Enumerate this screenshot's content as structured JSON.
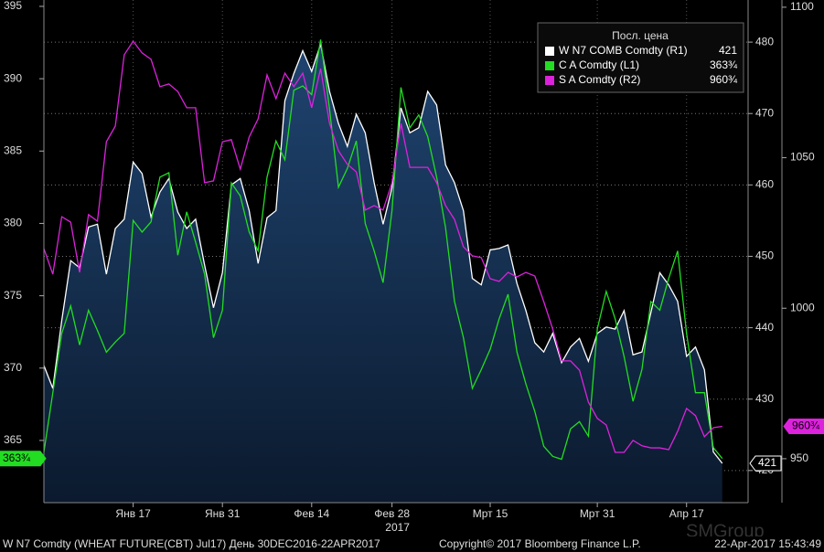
{
  "chart_data": {
    "type": "line",
    "legend_title": "Посл. цена",
    "categories": [
      null,
      null,
      null,
      null,
      null,
      null,
      null,
      null,
      null,
      null,
      "Янв 17",
      null,
      null,
      null,
      null,
      null,
      null,
      null,
      null,
      null,
      "Янв 31",
      null,
      null,
      null,
      null,
      null,
      null,
      null,
      null,
      null,
      "Фев 14",
      null,
      null,
      null,
      null,
      null,
      null,
      null,
      null,
      "Фев 28",
      null,
      null,
      null,
      null,
      null,
      null,
      null,
      null,
      null,
      null,
      "Мрт 15",
      null,
      null,
      null,
      null,
      null,
      null,
      null,
      null,
      null,
      null,
      null,
      "Мрт 31",
      null,
      null,
      null,
      null,
      null,
      null,
      null,
      null,
      null,
      "Апр 17",
      null,
      null,
      null,
      null
    ],
    "x_year_label": "2017",
    "series": [
      {
        "name": "W N7 COMB Comdty  (R1)",
        "color": "#ffffff",
        "axis": "y2",
        "area": true,
        "last_value_label": "421",
        "values": [
          434.7,
          431.5,
          441,
          449.4,
          448.4,
          454.1,
          454.5,
          447.5,
          453.9,
          455.2,
          463.2,
          461.6,
          455.5,
          459,
          460.9,
          456.2,
          453.9,
          455.2,
          448.8,
          442.8,
          447.7,
          460,
          460.9,
          456.4,
          449,
          455.4,
          456.4,
          471.8,
          475.6,
          478.8,
          475.9,
          479.7,
          473.1,
          468.6,
          465.4,
          469.9,
          467.3,
          460.3,
          454.5,
          459.6,
          470.8,
          467.3,
          468,
          473.1,
          471.2,
          462.8,
          460.3,
          456.4,
          446.9,
          446,
          450.9,
          451.1,
          451.6,
          446.2,
          442.4,
          437.9,
          436.6,
          439.2,
          435.1,
          437.3,
          438.5,
          435.3,
          439.2,
          440.1,
          439.8,
          442.4,
          436.2,
          436.6,
          442.1,
          447.7,
          446,
          443.7,
          436,
          437.3,
          434.1,
          422.6,
          421
        ]
      },
      {
        "name": "C A Comdty  (L1)",
        "color": "#22dd22",
        "axis": "y",
        "last_value_label": "363¾",
        "values": [
          364.2,
          368.3,
          372.4,
          374.3,
          371.6,
          374,
          372.6,
          371.1,
          371.8,
          372.4,
          380.2,
          379.4,
          380.1,
          383.2,
          383.5,
          377.8,
          380.8,
          378.7,
          376.5,
          372.1,
          374,
          382.8,
          381.9,
          379.4,
          378.1,
          383.2,
          385.7,
          384.4,
          389.2,
          389.5,
          388.9,
          392.7,
          387.9,
          382.5,
          383.8,
          385.7,
          380,
          378.1,
          375.9,
          380.9,
          389.4,
          386.6,
          387.5,
          386,
          383.2,
          379.7,
          374.6,
          372.1,
          368.6,
          369.9,
          371.3,
          373.4,
          375.1,
          371.1,
          368.9,
          367,
          364.6,
          363.9,
          363.7,
          365.8,
          366.3,
          365.3,
          372.7,
          375.3,
          373.4,
          370.8,
          367.7,
          369.9,
          374.6,
          374,
          376.2,
          378.1,
          372.4,
          368.3,
          368.3,
          364.5,
          363.75
        ]
      },
      {
        "name": "S A Comdty  (R2)",
        "color": "#dd22dd",
        "axis": "y3",
        "last_value_label": "960¾",
        "values": [
          1019.8,
          1011.3,
          1030.4,
          1028.6,
          1011.9,
          1031.1,
          1028.9,
          1055.3,
          1060.5,
          1084.2,
          1088.7,
          1084.8,
          1082.7,
          1073.6,
          1074.5,
          1072,
          1066.6,
          1066.6,
          1041.7,
          1042.3,
          1055.3,
          1056,
          1046.2,
          1056.9,
          1062.9,
          1077.5,
          1069.6,
          1078.1,
          1073.6,
          1078.1,
          1066.6,
          1079.6,
          1061.4,
          1052.3,
          1047.8,
          1045.3,
          1032.6,
          1034.1,
          1032.6,
          1041.7,
          1061.4,
          1046.8,
          1046.8,
          1046.8,
          1041.7,
          1034.1,
          1029.5,
          1020.4,
          1017.4,
          1016.8,
          1009.8,
          1008.9,
          1011.9,
          1010.4,
          1011.9,
          1010.7,
          1002.2,
          993.1,
          982.5,
          982.5,
          979.4,
          968.8,
          963.4,
          961.2,
          952.1,
          952.1,
          956.1,
          954.3,
          953.6,
          953.6,
          953,
          959.1,
          966.7,
          964.3,
          957.3,
          960.3,
          960.75
        ]
      }
    ],
    "ylim": [
      360.7,
      395.44
    ],
    "yticks": [
      365,
      370,
      375,
      380,
      385,
      390,
      395
    ],
    "y2lim": [
      415.5,
      485.9
    ],
    "y2ticks": [
      420,
      430,
      440,
      450,
      460,
      470,
      480
    ],
    "y3lim": [
      935.4,
      1102.4
    ],
    "y3ticks": [
      950,
      1000,
      1050,
      1100
    ],
    "grid": true,
    "footer_left": "W N7 Comdty (WHEAT FUTURE(CBT) Jul17) День 30DEC2016-22APR2017",
    "footer_center": "Copyright© 2017 Bloomberg Finance L.P.",
    "footer_right": "22-Apr-2017 15:43:49",
    "watermark": "SMGroup"
  }
}
